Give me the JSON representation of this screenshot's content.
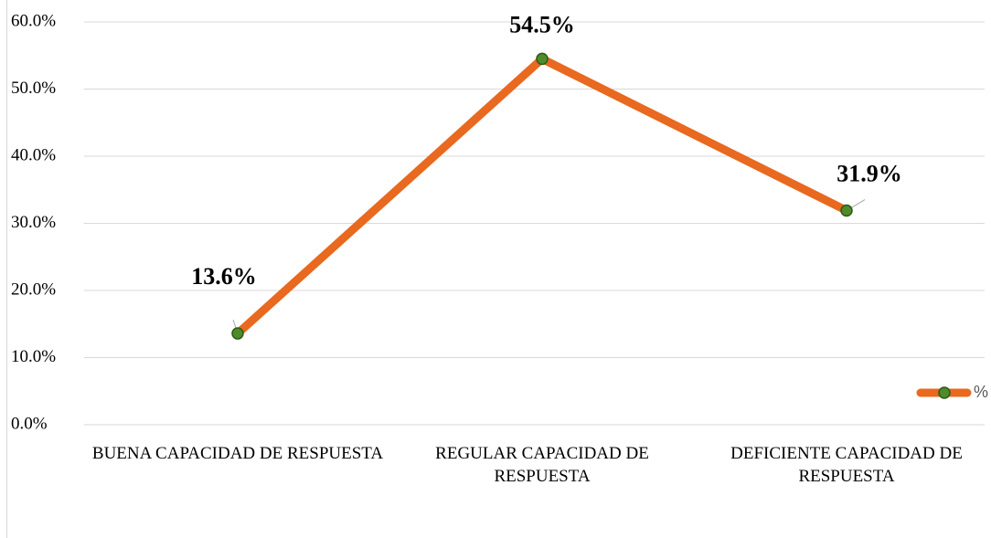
{
  "chart_data": {
    "type": "line",
    "categories": [
      "BUENA CAPACIDAD DE RESPUESTA",
      "REGULAR CAPACIDAD DE RESPUESTA",
      "DEFICIENTE CAPACIDAD DE RESPUESTA"
    ],
    "series": [
      {
        "name": "%",
        "color": "#e8691f",
        "marker_color": "#4f8a2b",
        "values": [
          13.6,
          54.5,
          31.9
        ],
        "value_labels": [
          "13.6%",
          "54.5%",
          "31.9%"
        ]
      }
    ],
    "ylim": [
      0,
      60
    ],
    "yticks": [
      {
        "value": 0,
        "label": "0.0%"
      },
      {
        "value": 10,
        "label": "10.0%"
      },
      {
        "value": 20,
        "label": "20.0%"
      },
      {
        "value": 30,
        "label": "30.0%"
      },
      {
        "value": 40,
        "label": "40.0%"
      },
      {
        "value": 50,
        "label": "50.0%"
      },
      {
        "value": 60,
        "label": "60.0%"
      }
    ],
    "grid": true,
    "legend": "right"
  }
}
